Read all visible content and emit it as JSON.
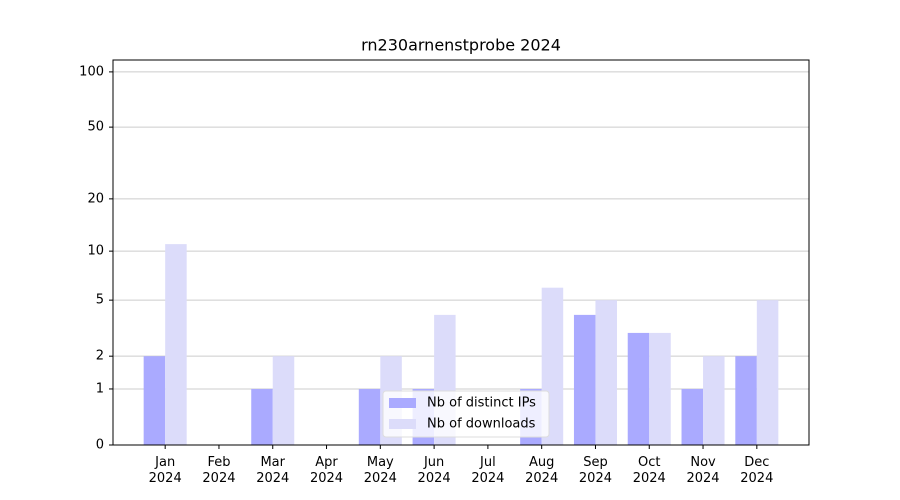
{
  "chart_data": {
    "type": "bar",
    "title": "rn230arnenstprobe 2024",
    "categories": [
      "Jan\n2024",
      "Feb\n2024",
      "Mar\n2024",
      "Apr\n2024",
      "May\n2024",
      "Jun\n2024",
      "Jul\n2024",
      "Aug\n2024",
      "Sep\n2024",
      "Oct\n2024",
      "Nov\n2024",
      "Dec\n2024"
    ],
    "series": [
      {
        "name": "Nb of distinct IPs",
        "color": "#aaaaff",
        "values": [
          2,
          0,
          1,
          0,
          1,
          1,
          0,
          1,
          4,
          3,
          1,
          2
        ]
      },
      {
        "name": "Nb of downloads",
        "color": "#dcdcfa",
        "values": [
          11,
          0,
          2,
          0,
          2,
          4,
          0,
          6,
          5,
          3,
          2,
          5
        ]
      }
    ],
    "yscale": "log1p",
    "ylim": [
      0,
      116
    ],
    "yticks": [
      0,
      1,
      2,
      5,
      10,
      20,
      50,
      100
    ],
    "grid": true,
    "legend": "lower center"
  }
}
